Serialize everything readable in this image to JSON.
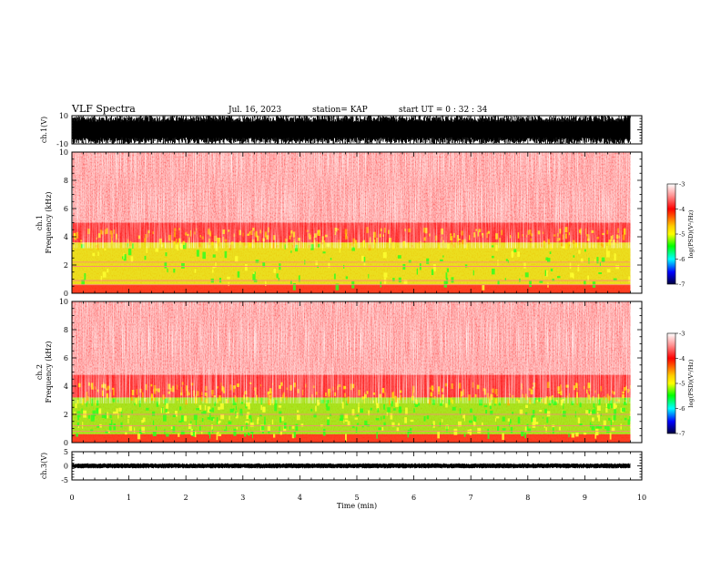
{
  "header": {
    "title": "VLF Spectra",
    "date": "Jul. 16, 2023",
    "station": "station= KAP",
    "start": "start  UT =  0 : 32 : 34"
  },
  "colors": {
    "low": "#ff0000",
    "mid_hi": "#ffff00",
    "mid": "#00ff00",
    "colorbar": [
      "#ffffff",
      "#ff0000",
      "#ffff00",
      "#00ff00",
      "#00ffff",
      "#0000ff",
      "#000040"
    ]
  },
  "chart_data": [
    {
      "type": "line",
      "panel": "ch1-waveform",
      "ylabel": "ch.1(V)",
      "yticks": [
        "10",
        "-10"
      ],
      "ylim": [
        -10,
        10
      ],
      "xlim": [
        0,
        10
      ],
      "data_extent_min": 9.8,
      "amplitude_range": [
        -10,
        10
      ]
    },
    {
      "type": "heatmap",
      "panel": "ch1-spectrogram",
      "ylabel": "ch.1\nFrequency (kHz)",
      "ylabel_line1": "ch.1",
      "ylabel_line2": "Frequency (kHz)",
      "yticks": [
        "0",
        "2",
        "4",
        "6",
        "8",
        "10"
      ],
      "ylim": [
        0,
        10
      ],
      "xlim": [
        0,
        10
      ],
      "colorbar": {
        "label": "log(PSD)(V²/Hz)",
        "ticks": [
          "-3",
          "-4",
          "-5",
          "-6",
          "-7"
        ],
        "range": [
          -7,
          -3
        ]
      },
      "bands": [
        {
          "f_min": 0.0,
          "f_max": 0.6,
          "color": "red-orange"
        },
        {
          "f_min": 0.6,
          "f_max": 3.6,
          "color": "yellow-green"
        },
        {
          "f_min": 3.6,
          "f_max": 5.0,
          "color": "red"
        },
        {
          "f_min": 5.0,
          "f_max": 10.0,
          "color": "light red"
        }
      ],
      "lines_khz": [
        2.2,
        1.9,
        0.9,
        0.6
      ]
    },
    {
      "type": "heatmap",
      "panel": "ch2-spectrogram",
      "ylabel_line1": "ch.2",
      "ylabel_line2": "Frequency (kHz)",
      "yticks": [
        "0",
        "2",
        "4",
        "6",
        "8",
        "10"
      ],
      "ylim": [
        0,
        10
      ],
      "xlim": [
        0,
        10
      ],
      "colorbar": {
        "label": "log(PSD)(V²/Hz)",
        "ticks": [
          "-3",
          "-4",
          "-5",
          "-6",
          "-7"
        ],
        "range": [
          -7,
          -3
        ]
      },
      "bands": [
        {
          "f_min": 0.0,
          "f_max": 0.6,
          "color": "red-orange"
        },
        {
          "f_min": 0.6,
          "f_max": 3.2,
          "color": "green-yellow"
        },
        {
          "f_min": 3.2,
          "f_max": 4.8,
          "color": "red"
        },
        {
          "f_min": 4.8,
          "f_max": 10.0,
          "color": "light red"
        }
      ],
      "lines_khz": [
        2.0,
        1.2,
        0.8
      ]
    },
    {
      "type": "line",
      "panel": "ch3-waveform",
      "ylabel": "ch.3(V)",
      "yticks": [
        "5",
        "0",
        "-5"
      ],
      "ylim": [
        -5,
        5
      ],
      "xlim": [
        0,
        10
      ],
      "data_extent_min": 9.8,
      "amplitude_range": [
        -0.9,
        0.9
      ]
    }
  ],
  "x_axis": {
    "label": "Time (min)",
    "ticks": [
      "0",
      "1",
      "2",
      "3",
      "4",
      "5",
      "6",
      "7",
      "8",
      "9",
      "10"
    ]
  }
}
